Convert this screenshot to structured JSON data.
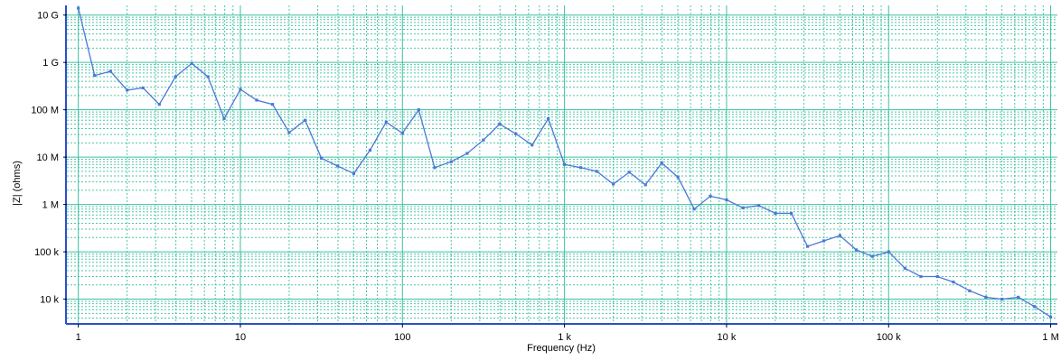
{
  "chart_data": {
    "type": "line",
    "title": "",
    "xlabel": "Frequency (Hz)",
    "ylabel": "|Z| (ohms)",
    "x_scale": "log",
    "y_scale": "log",
    "xlim": [
      0.85,
      1100000
    ],
    "ylim": [
      3000,
      16000000000
    ],
    "grid": true,
    "legend": "none",
    "colors": {
      "line": "#4a78d8",
      "grid": "#3cc0a0",
      "axis": "#2a4fcf",
      "background": "#ffffff"
    },
    "x_ticks": [
      {
        "value": 1,
        "label": "1"
      },
      {
        "value": 10,
        "label": "10"
      },
      {
        "value": 100,
        "label": "100"
      },
      {
        "value": 1000,
        "label": "1 k"
      },
      {
        "value": 10000,
        "label": "10 k"
      },
      {
        "value": 100000,
        "label": "100 k"
      },
      {
        "value": 1000000,
        "label": "1 M"
      }
    ],
    "y_ticks": [
      {
        "value": 10000,
        "label": "10 k"
      },
      {
        "value": 100000,
        "label": "100 k"
      },
      {
        "value": 1000000,
        "label": "1 M"
      },
      {
        "value": 10000000,
        "label": "10 M"
      },
      {
        "value": 100000000,
        "label": "100 M"
      },
      {
        "value": 1000000000,
        "label": "1 G"
      },
      {
        "value": 10000000000,
        "label": "10 G"
      }
    ],
    "series": [
      {
        "x": [
          1,
          1.26,
          1.58,
          2,
          2.51,
          3.16,
          3.98,
          5.01,
          6.31,
          7.94,
          10,
          12.6,
          15.8,
          20,
          25.1,
          31.6,
          39.8,
          50.1,
          63.1,
          79.4,
          100,
          126,
          158,
          200,
          251,
          316,
          398,
          501,
          631,
          794,
          1000,
          1260,
          1580,
          2000,
          2510,
          3160,
          3980,
          5010,
          6310,
          7940,
          10000,
          12600,
          15800,
          20000,
          25100,
          31600,
          39800,
          50100,
          63100,
          79400,
          100000,
          126000,
          158000,
          200000,
          251000,
          316000,
          398000,
          501000,
          631000,
          794000,
          1000000
        ],
        "y": [
          14000000000,
          530000000,
          650000000,
          260000000,
          290000000,
          130000000,
          500000000,
          950000000,
          500000000,
          65000000,
          270000000,
          160000000,
          130000000,
          33000000,
          60000000,
          9500000,
          6500000,
          4500000,
          14000000,
          55000000,
          32000000,
          100000000,
          6000000,
          8000000,
          12000000,
          23000000,
          50000000,
          31000000,
          18000000,
          65000000,
          7000000,
          6000000,
          5000000,
          2700000,
          4800000,
          2600000,
          7500000,
          3800000,
          800000,
          1500000,
          1250000,
          850000,
          950000,
          650000,
          650000,
          130000,
          170000,
          220000,
          110000,
          80000,
          100000,
          45000,
          30000,
          30000,
          23000,
          15000,
          11000,
          10000,
          11000,
          7000,
          4200
        ]
      }
    ]
  }
}
